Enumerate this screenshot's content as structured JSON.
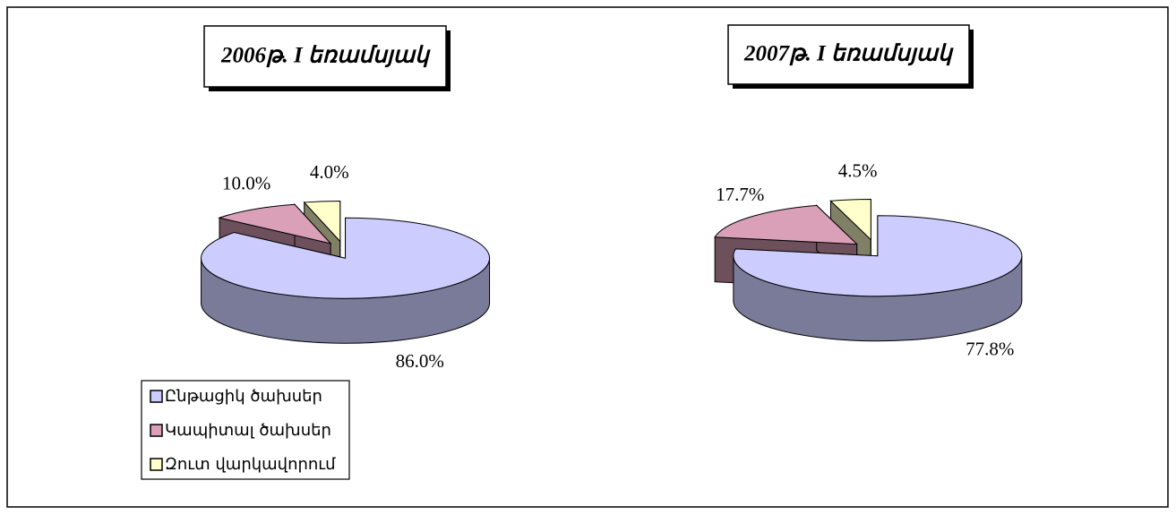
{
  "chart_data": [
    {
      "type": "pie",
      "title": "2006թ. I եռամսյակ",
      "categories": [
        "Ընթացիկ ծախսեր",
        "Կապիտալ ծախսեր",
        "Զուտ վարկավորում"
      ],
      "values": [
        86.0,
        10.0,
        4.0
      ],
      "value_labels": [
        "86.0%",
        "10.0%",
        "4.0%"
      ],
      "colors": [
        "#ccccff",
        "#d9a0b8",
        "#ffffcc"
      ]
    },
    {
      "type": "pie",
      "title": "2007թ. I եռամսյակ",
      "values": [
        77.8,
        17.7,
        4.5
      ],
      "value_labels": [
        "77.8%",
        "17.7%",
        "4.5%"
      ],
      "colors": [
        "#ccccff",
        "#d9a0b8",
        "#ffffcc"
      ]
    }
  ]
}
